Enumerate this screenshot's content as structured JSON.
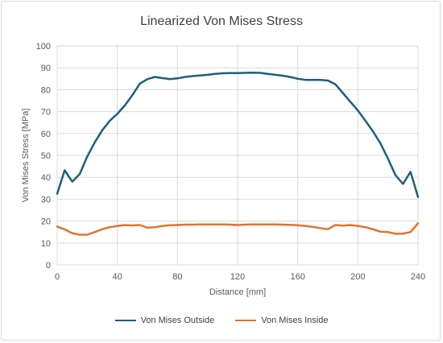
{
  "chart_data": {
    "type": "line",
    "title": "Linearized Von Mises Stress",
    "xlabel": "Distance [mm]",
    "ylabel": "Von Mises Stress [MPa]",
    "xlim": [
      0,
      240
    ],
    "ylim": [
      0,
      100
    ],
    "x_ticks": [
      0,
      40,
      80,
      120,
      160,
      200,
      240
    ],
    "y_ticks": [
      0,
      10,
      20,
      30,
      40,
      50,
      60,
      70,
      80,
      90,
      100
    ],
    "grid": true,
    "legend_position": "bottom",
    "x": [
      0,
      5,
      10,
      15,
      20,
      25,
      30,
      35,
      40,
      45,
      50,
      55,
      60,
      65,
      70,
      75,
      80,
      85,
      90,
      95,
      100,
      105,
      110,
      115,
      120,
      125,
      130,
      135,
      140,
      145,
      150,
      155,
      160,
      165,
      170,
      175,
      180,
      185,
      190,
      195,
      200,
      205,
      210,
      215,
      220,
      225,
      230,
      235,
      240
    ],
    "series": [
      {
        "name": "Von Mises Outside",
        "color": "#1f5f7a",
        "values": [
          32.5,
          43.2,
          38.0,
          41.5,
          49.5,
          56.0,
          61.5,
          65.8,
          69.0,
          72.8,
          77.5,
          82.8,
          84.8,
          85.8,
          85.3,
          84.8,
          85.2,
          85.8,
          86.2,
          86.5,
          86.8,
          87.2,
          87.5,
          87.6,
          87.6,
          87.7,
          87.8,
          87.7,
          87.2,
          86.8,
          86.4,
          85.8,
          85.0,
          84.5,
          84.5,
          84.5,
          84.2,
          82.5,
          78.5,
          74.5,
          70.5,
          65.8,
          61.0,
          55.5,
          48.5,
          41.0,
          37.0,
          42.5,
          31.0
        ]
      },
      {
        "name": "Von Mises Inside",
        "color": "#e0732e",
        "values": [
          17.5,
          16.2,
          14.5,
          13.8,
          13.8,
          15.0,
          16.3,
          17.2,
          17.8,
          18.2,
          18.0,
          18.2,
          17.0,
          17.2,
          17.8,
          18.1,
          18.2,
          18.4,
          18.4,
          18.5,
          18.5,
          18.5,
          18.5,
          18.4,
          18.2,
          18.4,
          18.5,
          18.5,
          18.5,
          18.5,
          18.4,
          18.3,
          18.1,
          17.8,
          17.4,
          16.8,
          16.3,
          18.2,
          17.9,
          18.2,
          17.8,
          17.2,
          16.3,
          15.2,
          15.0,
          14.2,
          14.3,
          15.0,
          19.0
        ]
      }
    ]
  }
}
